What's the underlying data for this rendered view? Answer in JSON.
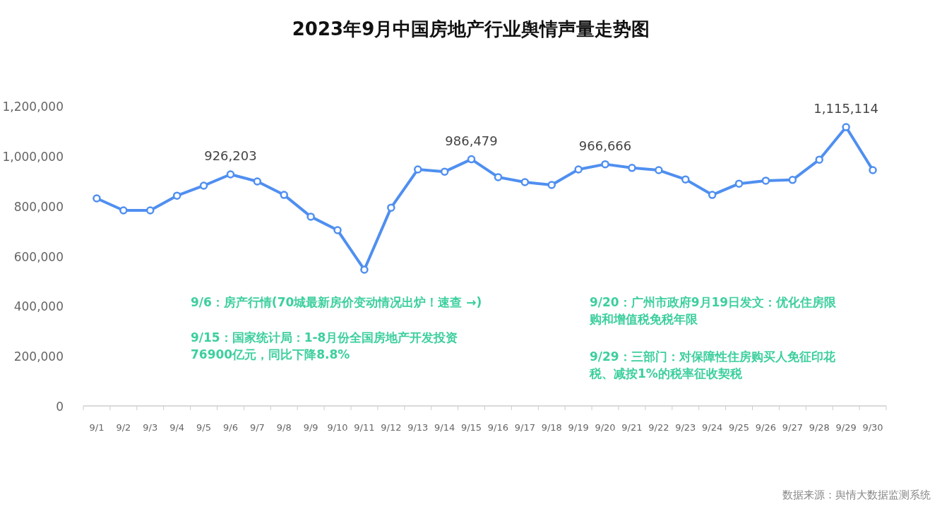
{
  "chart_data": {
    "type": "line",
    "title": "2023年9月中国房地产行业舆情声量走势图",
    "categories": [
      "9/1",
      "9/2",
      "9/3",
      "9/4",
      "9/5",
      "9/6",
      "9/7",
      "9/8",
      "9/9",
      "9/10",
      "9/11",
      "9/12",
      "9/13",
      "9/14",
      "9/15",
      "9/16",
      "9/17",
      "9/18",
      "9/19",
      "9/20",
      "9/21",
      "9/22",
      "9/23",
      "9/24",
      "9/25",
      "9/26",
      "9/27",
      "9/28",
      "9/29",
      "9/30"
    ],
    "series": [
      {
        "color": "#4f8ff0",
        "values": [
          830000,
          782000,
          782000,
          841000,
          881000,
          926203,
          898000,
          844000,
          757000,
          703000,
          545000,
          793000,
          946000,
          937000,
          986479,
          915000,
          895000,
          884000,
          946000,
          966666,
          952000,
          943000,
          906000,
          844000,
          889000,
          901000,
          904000,
          985000,
          1115114,
          943000
        ],
        "value_labels": [
          null,
          null,
          null,
          null,
          null,
          "926,203",
          null,
          null,
          null,
          null,
          null,
          null,
          null,
          null,
          "986,479",
          null,
          null,
          null,
          null,
          "966,666",
          null,
          null,
          null,
          null,
          null,
          null,
          null,
          null,
          "1,115,114",
          null
        ]
      }
    ],
    "ylim": [
      0,
      1200000
    ],
    "yticks": [
      {
        "value": 0,
        "label": "0"
      },
      {
        "value": 200000,
        "label": "200,000"
      },
      {
        "value": 400000,
        "label": "400,000"
      },
      {
        "value": 600000,
        "label": "600,000"
      },
      {
        "value": 800000,
        "label": "800,000"
      },
      {
        "value": 1000000,
        "label": "1,000,000"
      },
      {
        "value": 1200000,
        "label": "1,200,000"
      }
    ],
    "marker": "circle",
    "line_style": "solid",
    "grid": false,
    "annotations": [
      "9/6：房产行情(70城最新房价变动情况出炉！速查 →)",
      "9/15：国家统计局：1-8月份全国房地产开发投资76900亿元，同比下降8.8%",
      "9/20：广州市政府9月19日发文：优化住房限购和增值税免税年限",
      "9/29：三部门：对保障性住房购买人免征印花税、减按1%的税率征收契税",
      "数据来源：舆情大数据监测系统"
    ]
  }
}
